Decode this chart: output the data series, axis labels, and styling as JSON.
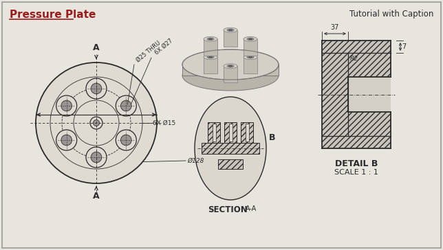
{
  "bg_color": "#e8e5de",
  "border_color": "#aaaaaa",
  "title": "Pressure Plate",
  "caption": "Tutorial with Caption",
  "title_color": "#9b1c1c",
  "drawing_color": "#2a2a2a",
  "section_label": "SECTION",
  "section_sub": "A-A",
  "detail_label": "DETAIL B",
  "scale_label": "SCALE 1 : 1",
  "dim_labels": {
    "outer_dia": "Ø128",
    "pcd_thru": "Ø25 THRU",
    "hole_dia": "6X Ø27",
    "small_hole": "6X Ø15",
    "dim_7": "7",
    "dim_37": "37",
    "dim_r2": "R2"
  },
  "figsize": [
    6.44,
    3.64
  ],
  "dpi": 100
}
